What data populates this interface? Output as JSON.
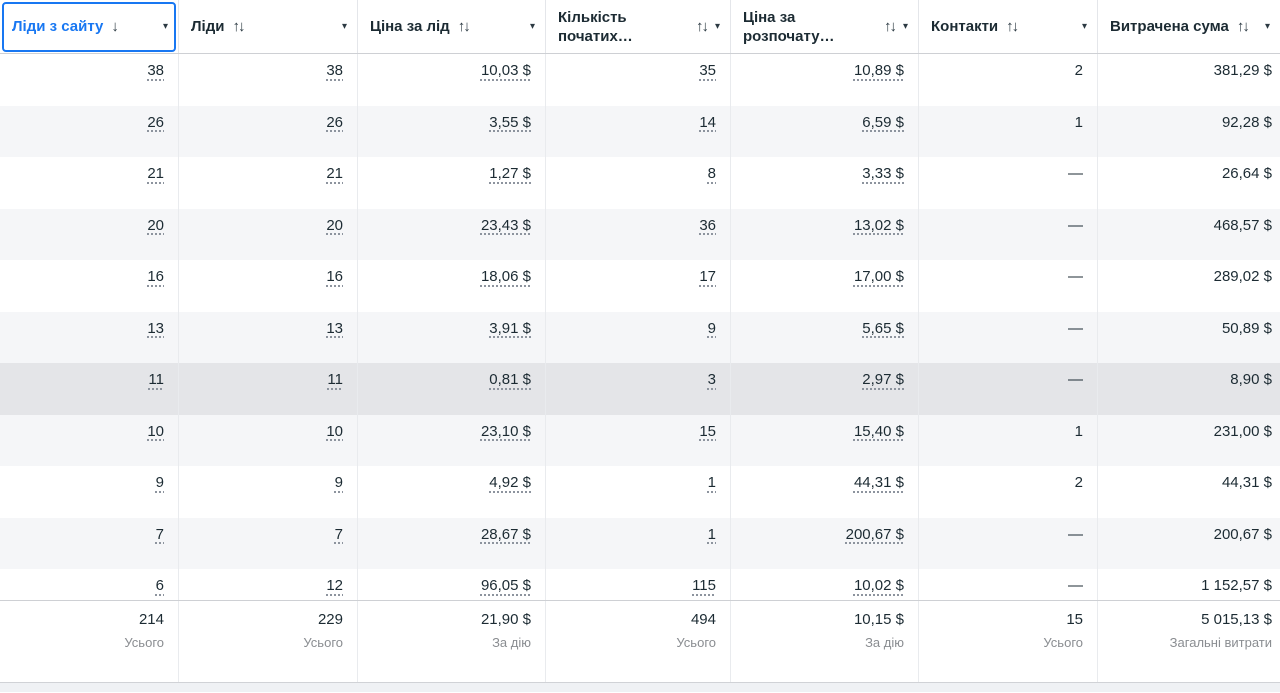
{
  "icons": {
    "sort_descending": "↓",
    "sort_toggle": "↑↓",
    "dropdown_caret": "▾"
  },
  "colors": {
    "accent_blue": "#1877f2",
    "row_stripe": "#f5f6f8",
    "row_highlight": "#e4e5e8",
    "header_border": "#ced0d4",
    "divider": "#e9ebee",
    "muted_text": "#8a8d91"
  },
  "table": {
    "columns": [
      {
        "label": "Ліди з сайту",
        "sort": "desc",
        "selected": true
      },
      {
        "label": "Ліди",
        "sort": "both",
        "selected": false
      },
      {
        "label": "Ціна за лід",
        "sort": "both",
        "selected": false
      },
      {
        "label": "Кількість початих…",
        "sort": "both",
        "selected": false
      },
      {
        "label": "Ціна за розпочату…",
        "sort": "both",
        "selected": false
      },
      {
        "label": "Контакти",
        "sort": "both",
        "selected": false
      },
      {
        "label": "Витрачена сума",
        "sort": "both",
        "selected": false
      }
    ],
    "underlined_columns": [
      0,
      1,
      2,
      3,
      4
    ],
    "highlighted_row_index": 6,
    "rows": [
      [
        "38",
        "38",
        "10,03 $",
        "35",
        "10,89 $",
        "2",
        "381,29 $"
      ],
      [
        "26",
        "26",
        "3,55 $",
        "14",
        "6,59 $",
        "1",
        "92,28 $"
      ],
      [
        "21",
        "21",
        "1,27 $",
        "8",
        "3,33 $",
        "—",
        "26,64 $"
      ],
      [
        "20",
        "20",
        "23,43 $",
        "36",
        "13,02 $",
        "—",
        "468,57 $"
      ],
      [
        "16",
        "16",
        "18,06 $",
        "17",
        "17,00 $",
        "—",
        "289,02 $"
      ],
      [
        "13",
        "13",
        "3,91 $",
        "9",
        "5,65 $",
        "—",
        "50,89 $"
      ],
      [
        "11",
        "11",
        "0,81 $",
        "3",
        "2,97 $",
        "—",
        "8,90 $"
      ],
      [
        "10",
        "10",
        "23,10 $",
        "15",
        "15,40 $",
        "1",
        "231,00 $"
      ],
      [
        "9",
        "9",
        "4,92 $",
        "1",
        "44,31 $",
        "2",
        "44,31 $"
      ],
      [
        "7",
        "7",
        "28,67 $",
        "1",
        "200,67 $",
        "—",
        "200,67 $"
      ],
      [
        "6",
        "12",
        "96,05 $",
        "115",
        "10,02 $",
        "—",
        "1 152,57 $"
      ]
    ],
    "totals": [
      {
        "value": "214",
        "label": "Усього"
      },
      {
        "value": "229",
        "label": "Усього"
      },
      {
        "value": "21,90 $",
        "label": "За дію"
      },
      {
        "value": "494",
        "label": "Усього"
      },
      {
        "value": "10,15 $",
        "label": "За дію"
      },
      {
        "value": "15",
        "label": "Усього"
      },
      {
        "value": "5 015,13 $",
        "label": "Загальні витрати"
      }
    ]
  }
}
